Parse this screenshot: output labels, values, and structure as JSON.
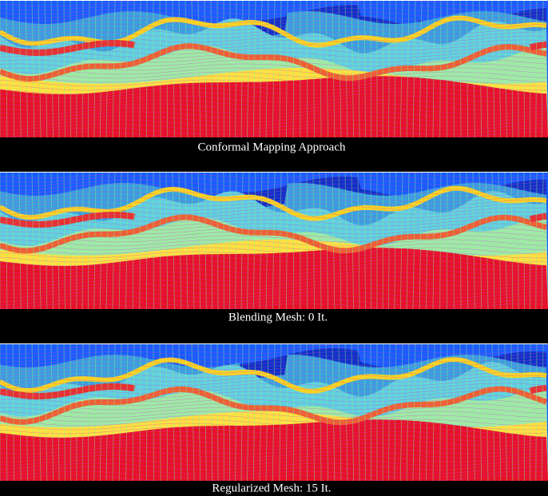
{
  "panels": [
    {
      "caption": "Conformal Mapping Approach"
    },
    {
      "caption": "Blending Mesh: 0 It."
    },
    {
      "caption": "Regularized Mesh: 15 It."
    }
  ]
}
